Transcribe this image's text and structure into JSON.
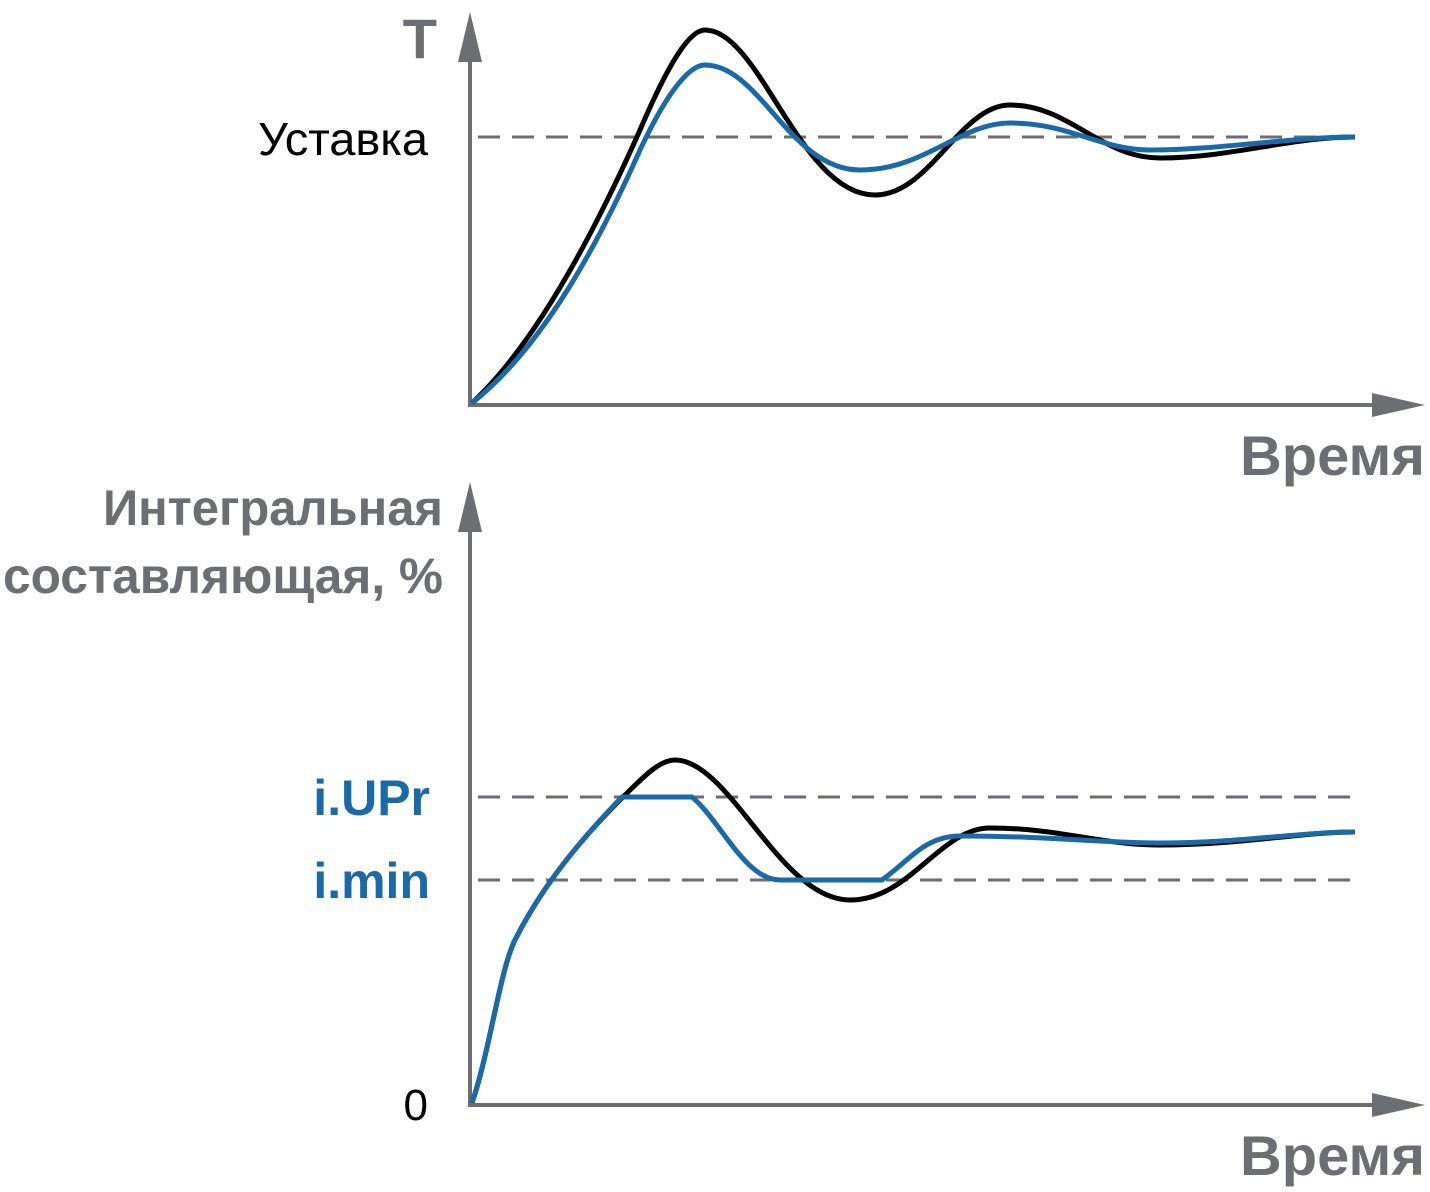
{
  "top_chart": {
    "y_axis_label": "Т",
    "setpoint_label": "Уставка",
    "x_axis_label": "Время"
  },
  "bottom_chart": {
    "y_axis_label_line1": "Интегральная",
    "y_axis_label_line2": "составляющая, %",
    "upper_limit_label": "i.UPr",
    "lower_limit_label": "i.min",
    "zero_label": "0",
    "x_axis_label": "Время"
  }
}
